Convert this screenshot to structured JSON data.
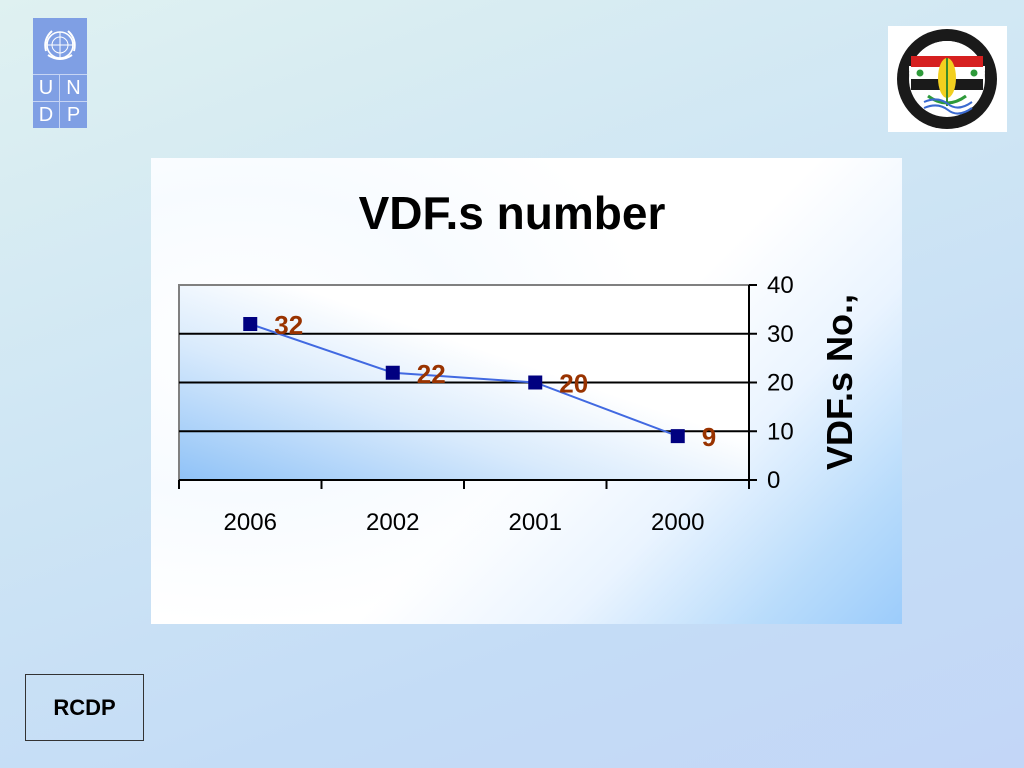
{
  "footer": {
    "label": "RCDP"
  },
  "logos": {
    "left": {
      "letters": [
        "U",
        "N",
        "D",
        "P"
      ]
    }
  },
  "chart_data": {
    "type": "line",
    "title": "VDF.s number",
    "xlabel": "",
    "ylabel": "VDF.s No.,",
    "categories": [
      "2006",
      "2002",
      "2001",
      "2000"
    ],
    "series": [
      {
        "values": [
          32,
          22,
          20,
          9
        ]
      }
    ],
    "data_labels": [
      "32",
      "22",
      "20",
      "9"
    ],
    "yticks": [
      0,
      10,
      20,
      30,
      40
    ],
    "ylim": [
      0,
      40
    ],
    "y_axis_side": "right",
    "grid": true,
    "legend": "none",
    "colors": {
      "line": "#4169e1",
      "marker": "#000080",
      "label": "#993300",
      "text": "#000000"
    }
  }
}
